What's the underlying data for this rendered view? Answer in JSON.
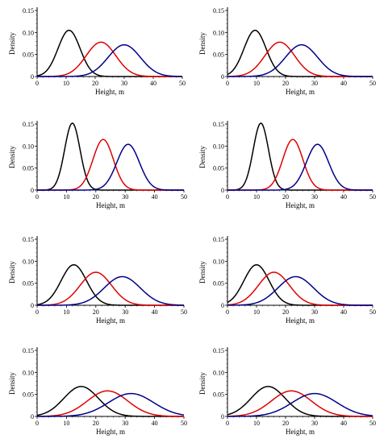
{
  "chart_data": [
    {
      "type": "line",
      "panel": "row1-left",
      "xlabel": "Height, m",
      "ylabel": "Density",
      "xlim": [
        0,
        50
      ],
      "ylim": [
        0,
        0.15
      ],
      "xticks": [
        "0",
        "10",
        "20",
        "30",
        "40",
        "50"
      ],
      "yticks": [
        "0",
        "0.05",
        "0.10",
        "0.15"
      ],
      "grid": false,
      "series": [
        {
          "color": "#000000",
          "mean": 11,
          "peak": 0.105
        },
        {
          "color": "#e00000",
          "mean": 22,
          "peak": 0.078
        },
        {
          "color": "#00008b",
          "mean": 30,
          "peak": 0.072
        }
      ]
    },
    {
      "type": "line",
      "panel": "row1-right",
      "xlabel": "Height, m",
      "ylabel": "Density",
      "xlim": [
        0,
        50
      ],
      "ylim": [
        0,
        0.15
      ],
      "xticks": [
        "0",
        "10",
        "20",
        "30",
        "40",
        "50"
      ],
      "yticks": [
        "0",
        "0.05",
        "0.10",
        "0.15"
      ],
      "grid": false,
      "series": [
        {
          "color": "#000000",
          "mean": 9.5,
          "peak": 0.105
        },
        {
          "color": "#e00000",
          "mean": 18,
          "peak": 0.078
        },
        {
          "color": "#00008b",
          "mean": 25.5,
          "peak": 0.072
        }
      ]
    },
    {
      "type": "line",
      "panel": "row2-left",
      "xlabel": "Height, m",
      "ylabel": "Density",
      "xlim": [
        0,
        50
      ],
      "ylim": [
        0,
        0.15
      ],
      "xticks": [
        "0",
        "10",
        "20",
        "30",
        "40",
        "50"
      ],
      "yticks": [
        "0",
        "0.05",
        "0.10",
        "0.15"
      ],
      "grid": false,
      "series": [
        {
          "color": "#000000",
          "mean": 12,
          "peak": 0.152
        },
        {
          "color": "#e00000",
          "mean": 22.5,
          "peak": 0.115
        },
        {
          "color": "#00008b",
          "mean": 31,
          "peak": 0.104
        }
      ]
    },
    {
      "type": "line",
      "panel": "row2-right",
      "xlabel": "Height, m",
      "ylabel": "Density",
      "xlim": [
        0,
        50
      ],
      "ylim": [
        0,
        0.15
      ],
      "xticks": [
        "0",
        "10",
        "20",
        "30",
        "40",
        "50"
      ],
      "yticks": [
        "0",
        "0.05",
        "0.10",
        "0.15"
      ],
      "grid": false,
      "series": [
        {
          "color": "#000000",
          "mean": 11.5,
          "peak": 0.152
        },
        {
          "color": "#e00000",
          "mean": 22.5,
          "peak": 0.115
        },
        {
          "color": "#00008b",
          "mean": 31,
          "peak": 0.104
        }
      ]
    },
    {
      "type": "line",
      "panel": "row3-left",
      "xlabel": "Height, m",
      "ylabel": "Density",
      "xlim": [
        0,
        50
      ],
      "ylim": [
        0,
        0.15
      ],
      "xticks": [
        "0",
        "10",
        "20",
        "30",
        "40",
        "50"
      ],
      "yticks": [
        "0",
        "0.05",
        "0.10",
        "0.15"
      ],
      "grid": false,
      "series": [
        {
          "color": "#000000",
          "mean": 12.5,
          "peak": 0.092
        },
        {
          "color": "#e00000",
          "mean": 20,
          "peak": 0.075
        },
        {
          "color": "#00008b",
          "mean": 29,
          "peak": 0.065
        }
      ]
    },
    {
      "type": "line",
      "panel": "row3-right",
      "xlabel": "Height, m",
      "ylabel": "Density",
      "xlim": [
        0,
        50
      ],
      "ylim": [
        0,
        0.15
      ],
      "xticks": [
        "0",
        "10",
        "20",
        "30",
        "40",
        "50"
      ],
      "yticks": [
        "0",
        "0.05",
        "0.10",
        "0.15"
      ],
      "grid": false,
      "series": [
        {
          "color": "#000000",
          "mean": 10,
          "peak": 0.092
        },
        {
          "color": "#e00000",
          "mean": 16,
          "peak": 0.075
        },
        {
          "color": "#00008b",
          "mean": 23.5,
          "peak": 0.065
        }
      ]
    },
    {
      "type": "line",
      "panel": "row4-left",
      "xlabel": "Height, m",
      "ylabel": "Density",
      "xlim": [
        0,
        50
      ],
      "ylim": [
        0,
        0.15
      ],
      "xticks": [
        "0",
        "10",
        "20",
        "30",
        "40",
        "50"
      ],
      "yticks": [
        "0",
        "0.05",
        "0.10",
        "0.15"
      ],
      "grid": false,
      "series": [
        {
          "color": "#000000",
          "mean": 15,
          "peak": 0.068
        },
        {
          "color": "#e00000",
          "mean": 24,
          "peak": 0.058
        },
        {
          "color": "#00008b",
          "mean": 32,
          "peak": 0.052
        }
      ]
    },
    {
      "type": "line",
      "panel": "row4-right",
      "xlabel": "Height, m",
      "ylabel": "Density",
      "xlim": [
        0,
        50
      ],
      "ylim": [
        0,
        0.15
      ],
      "xticks": [
        "0",
        "10",
        "20",
        "30",
        "40",
        "50"
      ],
      "yticks": [
        "0",
        "0.05",
        "0.10",
        "0.15"
      ],
      "grid": false,
      "series": [
        {
          "color": "#000000",
          "mean": 14,
          "peak": 0.068
        },
        {
          "color": "#e00000",
          "mean": 22,
          "peak": 0.058
        },
        {
          "color": "#00008b",
          "mean": 30,
          "peak": 0.052
        }
      ]
    }
  ]
}
